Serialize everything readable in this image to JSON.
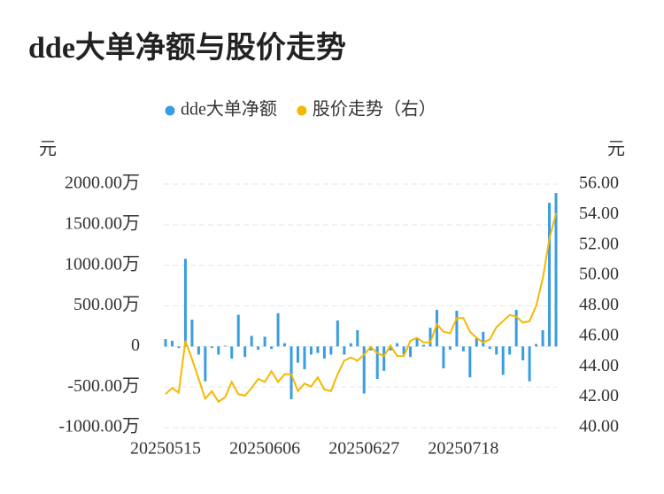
{
  "chart_data": {
    "type": "bar-line",
    "title": "dde大单净额与股价走势",
    "ylabel": "元",
    "y2label": "元",
    "categories": [
      "20250515",
      null,
      null,
      null,
      null,
      null,
      null,
      null,
      null,
      null,
      null,
      null,
      null,
      null,
      null,
      "20250606",
      null,
      null,
      null,
      null,
      null,
      null,
      null,
      null,
      null,
      null,
      null,
      null,
      null,
      null,
      "20250627",
      null,
      null,
      null,
      null,
      null,
      null,
      null,
      null,
      null,
      null,
      null,
      null,
      null,
      null,
      "20250718",
      null,
      null,
      null,
      null,
      null,
      null,
      null,
      null,
      null,
      null,
      null,
      null,
      null,
      null
    ],
    "series": [
      {
        "name": "dde大单净额",
        "type": "bar",
        "color": "#3a9de0",
        "values": [
          90,
          70,
          -20,
          1080,
          330,
          -100,
          -430,
          -20,
          -100,
          10,
          -150,
          390,
          -130,
          130,
          -40,
          120,
          -30,
          410,
          40,
          -650,
          -200,
          -280,
          -100,
          -80,
          -150,
          -100,
          320,
          -100,
          40,
          200,
          -580,
          -50,
          -400,
          -300,
          -50,
          40,
          -100,
          -130,
          110,
          20,
          230,
          450,
          -270,
          -40,
          440,
          -60,
          -380,
          100,
          180,
          -30,
          -100,
          -350,
          -100,
          450,
          -170,
          -430,
          30,
          200,
          1770,
          1890
        ]
      },
      {
        "name": "股价走势（右）",
        "type": "line",
        "axis": "y2",
        "color": "#f5b800",
        "values": [
          42.2,
          42.6,
          42.3,
          45.7,
          44.5,
          43.2,
          41.9,
          42.4,
          41.7,
          42.0,
          43.0,
          42.2,
          42.1,
          42.6,
          43.2,
          43.0,
          43.7,
          43.0,
          43.5,
          43.5,
          42.4,
          42.9,
          42.7,
          43.3,
          42.5,
          42.4,
          43.5,
          44.4,
          44.6,
          44.4,
          44.8,
          45.3,
          44.9,
          44.7,
          45.4,
          44.7,
          44.7,
          45.7,
          45.9,
          45.6,
          45.6,
          46.8,
          46.3,
          46.2,
          47.2,
          47.2,
          46.3,
          45.9,
          45.6,
          45.8,
          46.6,
          47.0,
          47.4,
          47.3,
          46.9,
          47.0,
          48.0,
          49.8,
          52.4,
          54.1
        ]
      }
    ],
    "ylim": [
      -1000,
      2000
    ],
    "yticks": [
      {
        "value": -1000,
        "label": "-1000.00万"
      },
      {
        "value": -500,
        "label": "-500.00万"
      },
      0,
      {
        "value": 500,
        "label": "500.00万"
      },
      {
        "value": 1000,
        "label": "1000.00万"
      },
      {
        "value": 1500,
        "label": "1500.00万"
      },
      {
        "value": 2000,
        "label": "2000.00万"
      }
    ],
    "y2lim": [
      40,
      56
    ],
    "y2ticks": [
      {
        "value": 40,
        "label": "40.00"
      },
      {
        "value": 42,
        "label": "42.00"
      },
      {
        "value": 44,
        "label": "44.00"
      },
      {
        "value": 46,
        "label": "46.00"
      },
      {
        "value": 48,
        "label": "48.00"
      },
      {
        "value": 50,
        "label": "50.00"
      },
      {
        "value": 52,
        "label": "52.00"
      },
      {
        "value": 54,
        "label": "54.00"
      },
      {
        "value": 56,
        "label": "56.00"
      }
    ],
    "grid": true,
    "legend": "top"
  }
}
